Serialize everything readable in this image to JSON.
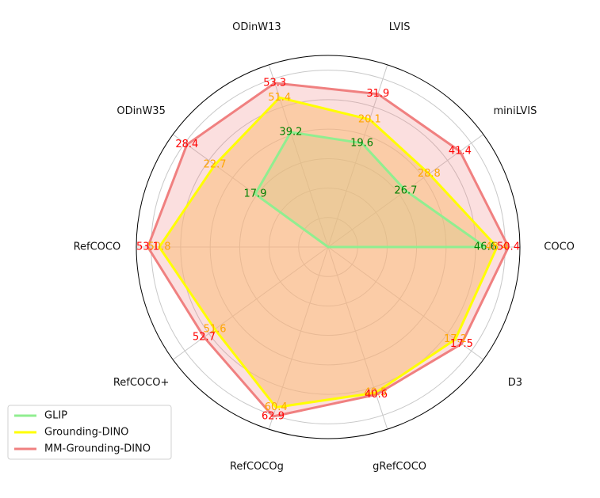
{
  "chart_data": {
    "type": "radar",
    "title": "",
    "categories": [
      "COCO",
      "miniLVIS",
      "LVIS",
      "ODinW13",
      "ODinW35",
      "RefCOCO",
      "RefCOCO+",
      "RefCOCOg",
      "gRefCOCO",
      "D3"
    ],
    "series": [
      {
        "name": "GLIP",
        "color": "#90ee90",
        "label_color": "#008000",
        "values": [
          46.6,
          26.7,
          19.6,
          39.2,
          17.9,
          null,
          null,
          null,
          null,
          null
        ],
        "labels": [
          "46.6",
          "26.7",
          "19.6",
          "39.2",
          "17.9",
          "",
          "",
          "",
          "",
          ""
        ],
        "radius_fraction": [
          0.82,
          0.5,
          0.57,
          0.63,
          0.47,
          0,
          0,
          0,
          0,
          0
        ]
      },
      {
        "name": "Grounding-DINO",
        "color": "#ffff00",
        "label_color": "#ffa500",
        "values": [
          48.4,
          28.8,
          20.1,
          51.4,
          22.7,
          50.8,
          51.6,
          60.4,
          40.5,
          17.2
        ],
        "labels": [
          "48.4",
          "28.8",
          "20.1",
          "51.4",
          "22.7",
          "50.8",
          "51.6",
          "60.4",
          "40.5",
          "17.2"
        ],
        "radius_fraction": [
          0.88,
          0.65,
          0.7,
          0.82,
          0.73,
          0.88,
          0.73,
          0.88,
          0.8,
          0.82
        ]
      },
      {
        "name": "MM-Grounding-DINO",
        "color": "#f08080",
        "label_color": "#ff0000",
        "values": [
          50.4,
          41.4,
          31.9,
          53.3,
          28.4,
          53.1,
          52.7,
          62.9,
          40.6,
          17.5
        ],
        "labels": [
          "50.4",
          "41.4",
          "31.9",
          "53.3",
          "28.4",
          "53.1",
          "52.7",
          "62.9",
          "40.6",
          "17.5"
        ],
        "radius_fraction": [
          0.94,
          0.85,
          0.84,
          0.9,
          0.91,
          0.94,
          0.8,
          0.93,
          0.81,
          0.86
        ]
      }
    ],
    "grid": true,
    "legend_position": "bottom-left"
  }
}
